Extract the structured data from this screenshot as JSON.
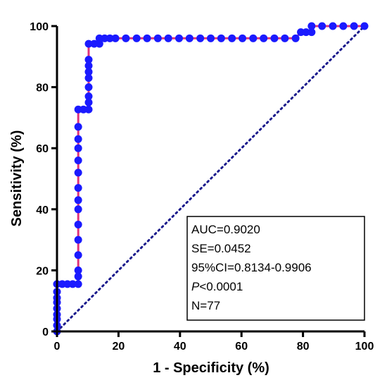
{
  "chart_data": {
    "type": "line",
    "title": "",
    "xlabel": "1 - Specificity (%)",
    "ylabel": "Sensitivity (%)",
    "xlim": [
      0,
      100
    ],
    "ylim": [
      0,
      100
    ],
    "x_ticks": [
      "0",
      "20",
      "40",
      "60",
      "80",
      "100"
    ],
    "y_ticks": [
      "0",
      "20",
      "40",
      "60",
      "80",
      "100"
    ],
    "grid": false,
    "legend": "none",
    "series": [
      {
        "color": "#e0337c",
        "marker_color": "#1a1aff",
        "x": [
          0,
          0,
          0,
          0,
          0,
          0,
          0,
          0,
          0,
          1.7,
          3.4,
          5.1,
          6.9,
          6.9,
          6.9,
          6.9,
          6.9,
          6.9,
          6.9,
          6.9,
          6.9,
          6.9,
          6.9,
          6.9,
          6.9,
          6.9,
          6.9,
          8.6,
          10.3,
          10.3,
          10.3,
          10.3,
          10.3,
          10.3,
          10.3,
          10.3,
          10.3,
          12.1,
          13.8,
          13.8,
          15.5,
          17.2,
          19.0,
          22.4,
          25.9,
          29.3,
          32.8,
          36.2,
          39.7,
          43.1,
          46.6,
          50.0,
          53.4,
          56.9,
          60.3,
          63.8,
          67.2,
          70.7,
          74.1,
          77.6,
          79.3,
          81.0,
          82.8,
          82.8,
          86.2,
          89.7,
          93.1,
          96.6,
          100
        ],
        "y": [
          0,
          2,
          4,
          5.5,
          7.5,
          9.5,
          11,
          13,
          15.5,
          15.5,
          15.5,
          15.5,
          15.5,
          18,
          20,
          25,
          30,
          35,
          40,
          43,
          47,
          52,
          56,
          60,
          63,
          67,
          72.7,
          72.7,
          72.7,
          75,
          77,
          80,
          83,
          85,
          87,
          89,
          94.2,
          94.2,
          94.2,
          96,
          96,
          96,
          96,
          96,
          96,
          96,
          96,
          96,
          96,
          96,
          96,
          96,
          96,
          96,
          96,
          96,
          96,
          96,
          96,
          96,
          98,
          98,
          98,
          100,
          100,
          100,
          100,
          100,
          100
        ]
      },
      {
        "name": "",
        "style": "dotted",
        "color": "#1a1a8c",
        "x": [
          0,
          100
        ],
        "y": [
          0,
          100
        ]
      }
    ],
    "annotations": [
      "AUC=0.9020",
      "SE=0.0452",
      "95%CI=0.8134-0.9906",
      "P<0.0001",
      "N=77"
    ]
  },
  "stats": {
    "auc": "AUC=0.9020",
    "se": "SE=0.0452",
    "ci": "95%CI=0.8134-0.9906",
    "p_symbol": "P",
    "p_value": "<0.0001",
    "n": "N=77"
  }
}
